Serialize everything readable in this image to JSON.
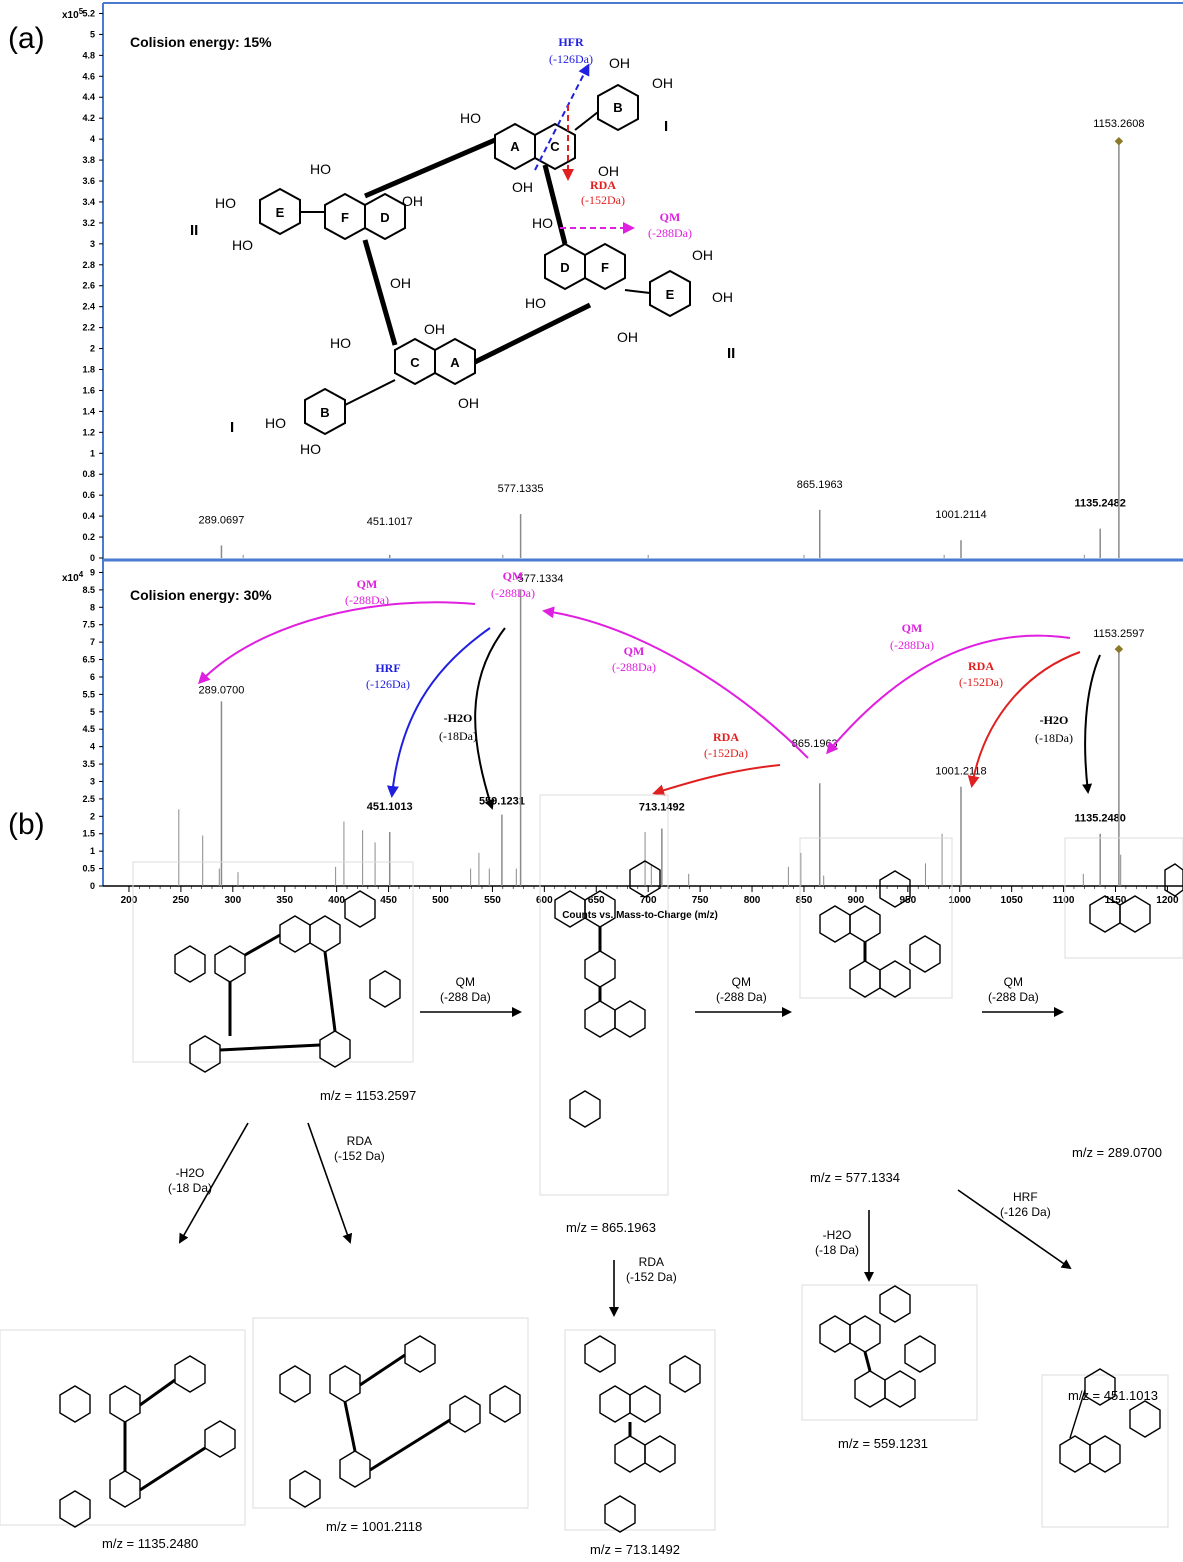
{
  "panel_a_label": "(a)",
  "panel_b_label": "(b)",
  "chart_data": [
    {
      "type": "bar",
      "title": "Colision energy: 15%",
      "y_multiplier_label": "x10",
      "y_multiplier_exp": "5",
      "ylim": [
        0,
        5.3
      ],
      "yticks": [
        "0",
        "0.2",
        "0.4",
        "0.6",
        "0.8",
        "1",
        "1.2",
        "1.4",
        "1.6",
        "1.8",
        "2",
        "2.2",
        "2.4",
        "2.6",
        "2.8",
        "3",
        "3.2",
        "3.4",
        "3.6",
        "3.8",
        "4",
        "4.2",
        "4.4",
        "4.6",
        "4.8",
        "5",
        "5.2"
      ],
      "xlim": [
        175,
        1215
      ],
      "peaks": [
        {
          "mz": 289.0697,
          "intensity": 0.12,
          "label": "289.0697",
          "bold": false
        },
        {
          "mz": 451.1017,
          "intensity": 0.03,
          "label": "451.1017",
          "bold": false
        },
        {
          "mz": 577.1335,
          "intensity": 0.42,
          "label": "577.1335",
          "bold": false
        },
        {
          "mz": 865.1963,
          "intensity": 0.46,
          "label": "865.1963",
          "bold": false
        },
        {
          "mz": 1001.2114,
          "intensity": 0.17,
          "label": "1001.2114",
          "bold": false
        },
        {
          "mz": 1135.2482,
          "intensity": 0.28,
          "label": "1135.2482",
          "bold": true
        },
        {
          "mz": 1153.2608,
          "intensity": 3.98,
          "label": "1153.2608",
          "bold": false
        }
      ],
      "minor_peaks_mz": [
        310,
        560,
        700,
        850,
        985,
        1120
      ]
    },
    {
      "type": "bar",
      "title": "Colision energy: 30%",
      "y_multiplier_label": "x10",
      "y_multiplier_exp": "4",
      "ylim": [
        0,
        9.3
      ],
      "yticks": [
        "0",
        "0.5",
        "1",
        "1.5",
        "2",
        "2.5",
        "3",
        "3.5",
        "4",
        "4.5",
        "5",
        "5.5",
        "6",
        "6.5",
        "7",
        "7.5",
        "8",
        "8.5",
        "9"
      ],
      "xlim": [
        175,
        1215
      ],
      "xticks": [
        "200",
        "250",
        "300",
        "350",
        "400",
        "450",
        "500",
        "550",
        "600",
        "650",
        "700",
        "750",
        "800",
        "850",
        "900",
        "950",
        "1000",
        "1050",
        "1100",
        "1150",
        "1200"
      ],
      "xlabel": "Counts vs. Mass-to-Charge (m/z)",
      "peaks": [
        {
          "mz": 289.07,
          "intensity": 5.3,
          "label": "289.0700",
          "bold": false
        },
        {
          "mz": 451.1013,
          "intensity": 1.55,
          "label": "451.1013",
          "bold": true
        },
        {
          "mz": 559.1231,
          "intensity": 2.05,
          "label": "559.1231",
          "bold": true
        },
        {
          "mz": 577.1334,
          "intensity": 8.5,
          "label": "577.1334",
          "bold": false
        },
        {
          "mz": 713.1492,
          "intensity": 1.65,
          "label": "713.1492",
          "bold": true
        },
        {
          "mz": 865.1963,
          "intensity": 2.95,
          "label": "865.1963",
          "bold": false
        },
        {
          "mz": 1001.2118,
          "intensity": 2.85,
          "label": "1001.2118",
          "bold": false
        },
        {
          "mz": 1135.248,
          "intensity": 1.5,
          "label": "1135.2480",
          "bold": true
        },
        {
          "mz": 1153.2597,
          "intensity": 6.8,
          "label": "1153.2597",
          "bold": false
        }
      ],
      "minor_peaks": [
        {
          "mz": 248,
          "intensity": 2.2
        },
        {
          "mz": 271,
          "intensity": 1.45
        },
        {
          "mz": 287,
          "intensity": 0.5
        },
        {
          "mz": 305,
          "intensity": 0.4
        },
        {
          "mz": 399,
          "intensity": 0.55
        },
        {
          "mz": 407,
          "intensity": 1.85
        },
        {
          "mz": 425,
          "intensity": 1.6
        },
        {
          "mz": 437,
          "intensity": 1.25
        },
        {
          "mz": 529,
          "intensity": 0.5
        },
        {
          "mz": 537,
          "intensity": 0.95
        },
        {
          "mz": 547,
          "intensity": 0.5
        },
        {
          "mz": 573,
          "intensity": 0.5
        },
        {
          "mz": 697,
          "intensity": 1.55
        },
        {
          "mz": 703,
          "intensity": 0.6
        },
        {
          "mz": 739,
          "intensity": 0.35
        },
        {
          "mz": 835,
          "intensity": 0.55
        },
        {
          "mz": 847,
          "intensity": 0.95
        },
        {
          "mz": 869,
          "intensity": 0.3
        },
        {
          "mz": 967,
          "intensity": 0.65
        },
        {
          "mz": 983,
          "intensity": 1.5
        },
        {
          "mz": 1119,
          "intensity": 0.35
        },
        {
          "mz": 1155,
          "intensity": 0.9
        }
      ],
      "annotations": [
        {
          "label": "QM",
          "sub": "(-288Da)"
        },
        {
          "label": "QM",
          "sub": "(-288Da)"
        },
        {
          "label": "HRF",
          "sub": "(-126Da)"
        },
        {
          "label": "-H2O",
          "sub": "(-18Da)"
        },
        {
          "label": "QM",
          "sub": "(-288Da)"
        },
        {
          "label": "RDA",
          "sub": "(-152Da)"
        },
        {
          "label": "QM",
          "sub": "(-288Da)"
        },
        {
          "label": "RDA",
          "sub": "(-152Da)"
        },
        {
          "label": "-H2O",
          "sub": "(-18Da)"
        }
      ]
    }
  ],
  "structure_a": {
    "hfr_label": "HFR",
    "hfr_sub": "(-126Da)",
    "rda_label": "RDA",
    "rda_sub": "(-152Da)",
    "qm_label": "QM",
    "qm_sub": "(-288Da)",
    "oh": "OH",
    "ho": "HO",
    "unit_I": "I",
    "unit_II": "II",
    "rings": [
      "A",
      "B",
      "C",
      "D",
      "E",
      "F"
    ]
  },
  "scheme_b": {
    "compounds": [
      {
        "mz_label": "m/z = 1153.2597"
      },
      {
        "mz_label": "m/z = 865.1963"
      },
      {
        "mz_label": "m/z = 577.1334"
      },
      {
        "mz_label": "m/z = 289.0700"
      },
      {
        "mz_label": "m/z = 1135.2480"
      },
      {
        "mz_label": "m/z = 1001.2118"
      },
      {
        "mz_label": "m/z = 713.1492"
      },
      {
        "mz_label": "m/z = 559.1231"
      },
      {
        "mz_label": "m/z = 451.1013"
      }
    ],
    "steps": [
      {
        "name": "QM",
        "loss": "(-288 Da)"
      },
      {
        "name": "QM",
        "loss": "(-288 Da)"
      },
      {
        "name": "QM",
        "loss": "(-288 Da)"
      },
      {
        "name": "-H2O",
        "loss": "(-18 Da)"
      },
      {
        "name": "RDA",
        "loss": "(-152 Da)"
      },
      {
        "name": "RDA",
        "loss": "(-152 Da)"
      },
      {
        "name": "-H2O",
        "loss": "(-18 Da)"
      },
      {
        "name": "HRF",
        "loss": "(-126 Da)"
      }
    ]
  },
  "colors": {
    "frame": "#4a7bd0",
    "qm": "#e020e0",
    "rda": "#e02020",
    "hrf": "#2020e0",
    "peak": "#8a8a8a",
    "marker": "#8b7a2a"
  }
}
